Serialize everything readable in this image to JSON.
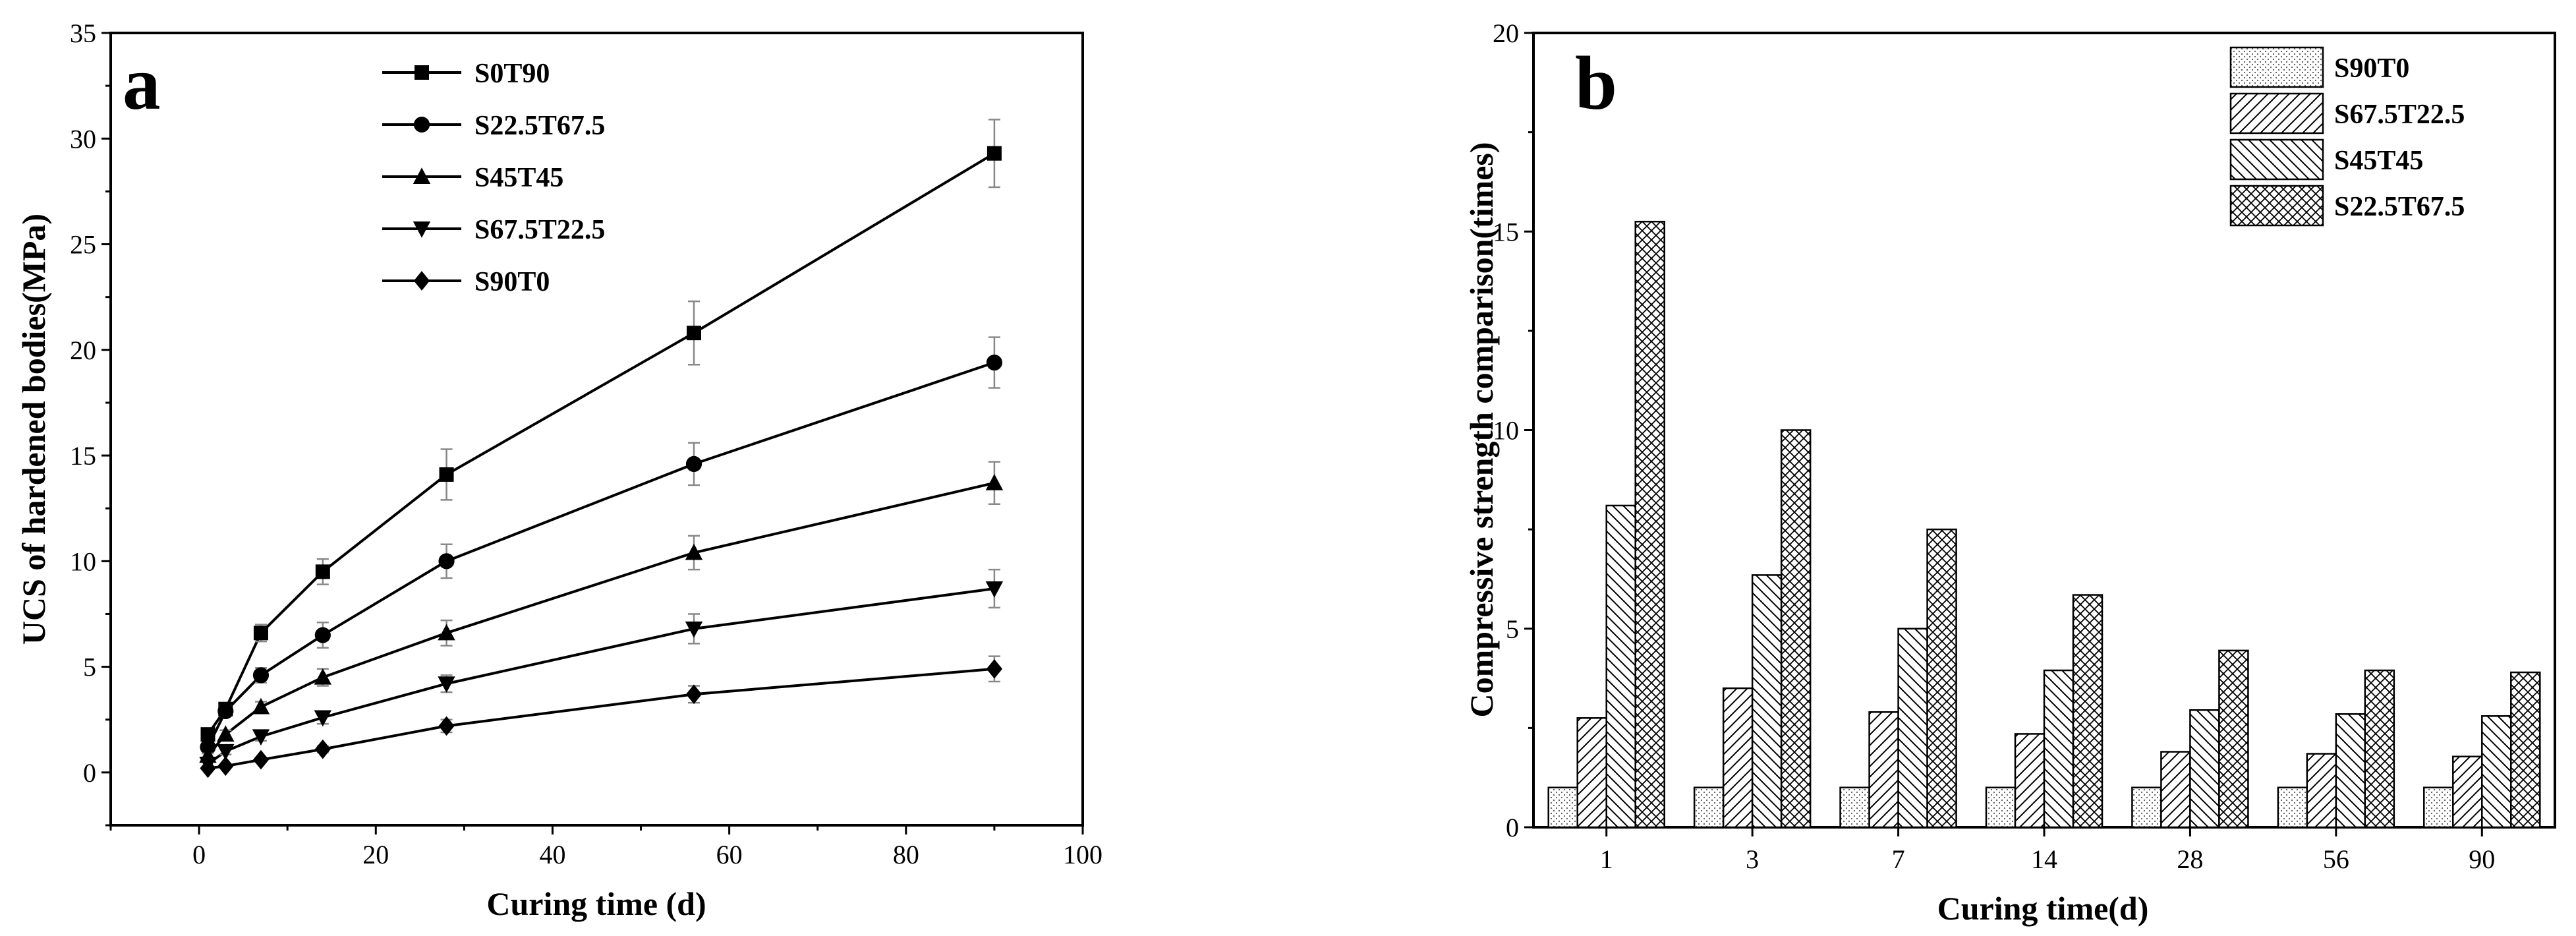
{
  "chart_data": [
    {
      "panel": "a",
      "type": "line",
      "xlabel": "Curing time (d)",
      "ylabel": "UCS of hardened bodies(MPa)",
      "xlim": [
        -10,
        100
      ],
      "ylim": [
        -2.5,
        35
      ],
      "xticks": [
        0,
        20,
        40,
        60,
        80,
        100
      ],
      "yticks": [
        0,
        5,
        10,
        15,
        20,
        25,
        30,
        35
      ],
      "x": [
        1,
        3,
        7,
        14,
        28,
        56,
        90
      ],
      "legend_position": "top",
      "series": [
        {
          "name": "S0T90",
          "marker": "square",
          "values": [
            1.8,
            3.0,
            6.6,
            9.5,
            14.1,
            20.8,
            29.3
          ],
          "errors": [
            0.2,
            0.3,
            0.4,
            0.6,
            1.2,
            1.5,
            1.6
          ]
        },
        {
          "name": "S22.5T67.5",
          "marker": "circle",
          "values": [
            1.2,
            2.9,
            4.6,
            6.5,
            10.0,
            14.6,
            19.4
          ],
          "errors": [
            0.15,
            0.25,
            0.35,
            0.6,
            0.8,
            1.0,
            1.2
          ]
        },
        {
          "name": "S45T45",
          "marker": "triangle-up",
          "values": [
            0.8,
            1.8,
            3.1,
            4.5,
            6.6,
            10.4,
            13.7
          ],
          "errors": [
            0.1,
            0.2,
            0.25,
            0.4,
            0.6,
            0.8,
            1.0
          ]
        },
        {
          "name": "S67.5T22.5",
          "marker": "triangle-down",
          "values": [
            0.4,
            1.0,
            1.7,
            2.6,
            4.2,
            6.8,
            8.7
          ],
          "errors": [
            0.1,
            0.15,
            0.2,
            0.3,
            0.4,
            0.7,
            0.9
          ]
        },
        {
          "name": "S90T0",
          "marker": "diamond",
          "values": [
            0.2,
            0.3,
            0.6,
            1.1,
            2.2,
            3.7,
            4.9
          ],
          "errors": [
            0.05,
            0.05,
            0.1,
            0.15,
            0.3,
            0.4,
            0.6
          ]
        }
      ]
    },
    {
      "panel": "b",
      "type": "bar",
      "xlabel": "Curing time(d)",
      "ylabel": "Compressive strength comparison(times)",
      "ylim": [
        0,
        20
      ],
      "yticks": [
        0,
        5,
        10,
        15,
        20
      ],
      "categories": [
        "1",
        "3",
        "7",
        "14",
        "28",
        "56",
        "90"
      ],
      "legend_position": "top-right",
      "series": [
        {
          "name": "S90T0",
          "pattern": "dots",
          "values": [
            1.0,
            1.0,
            1.0,
            1.0,
            1.0,
            1.0,
            1.0
          ]
        },
        {
          "name": "S67.5T22.5",
          "pattern": "diagonal-forward",
          "values": [
            2.75,
            3.5,
            2.9,
            2.35,
            1.9,
            1.85,
            1.78
          ]
        },
        {
          "name": "S45T45",
          "pattern": "diagonal-backward",
          "values": [
            8.1,
            6.35,
            5.0,
            3.95,
            2.95,
            2.85,
            2.8
          ]
        },
        {
          "name": "S22.5T67.5",
          "pattern": "crosshatch",
          "values": [
            15.25,
            10.0,
            7.5,
            5.85,
            4.45,
            3.95,
            3.9
          ]
        }
      ]
    }
  ]
}
